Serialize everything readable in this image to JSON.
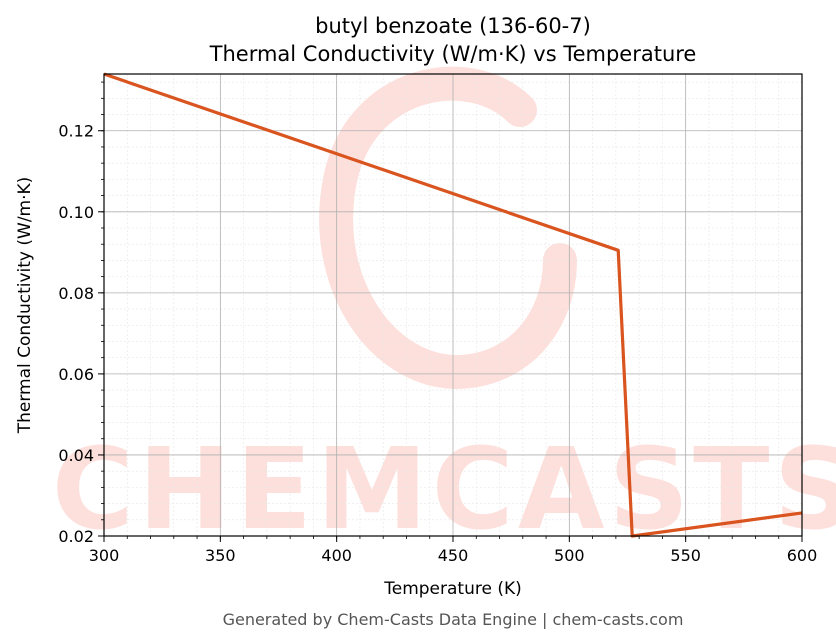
{
  "chart_data": {
    "type": "line",
    "title": "butyl benzoate (136-60-7)",
    "subtitle": "Thermal Conductivity (W/m·K) vs Temperature",
    "xlabel": "Temperature (K)",
    "ylabel": "Thermal Conductivity (W/m·K)",
    "xlim": [
      300,
      600
    ],
    "ylim": [
      0.02,
      0.134
    ],
    "xticks": [
      300,
      350,
      400,
      450,
      500,
      550,
      600
    ],
    "yticks": [
      0.02,
      0.04,
      0.06,
      0.08,
      0.1,
      0.12
    ],
    "ytick_labels": [
      "0.02",
      "0.04",
      "0.06",
      "0.08",
      "0.10",
      "0.12"
    ],
    "grid": true,
    "series": [
      {
        "color": "#d9541e",
        "x": [
          300,
          521,
          527,
          600
        ],
        "y": [
          0.134,
          0.0905,
          0.02,
          0.0257
        ]
      }
    ]
  },
  "watermark": {
    "text": "CHEMCASTS",
    "color": "#fde0dc"
  },
  "footer": "Generated by Chem-Casts Data Engine | chem-casts.com"
}
